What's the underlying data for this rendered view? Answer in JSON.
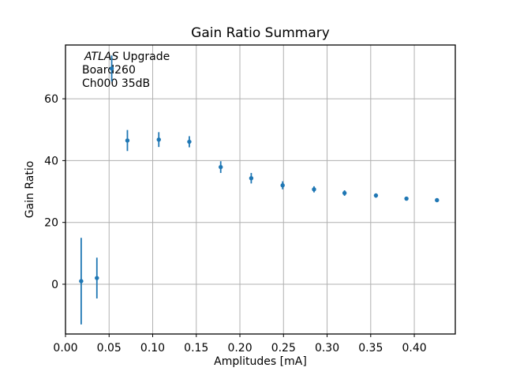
{
  "annotation": {
    "line1_italic": "ATLAS",
    "line1_rest": "Upgrade",
    "line2": "Board260",
    "line3": "Ch000 35dB"
  },
  "colors": {
    "marker": "#1f77b4",
    "grid": "#b0b0b0",
    "spine": "#000000",
    "background": "#ffffff"
  },
  "chart_data": {
    "type": "scatter",
    "title": "Gain Ratio Summary",
    "xlabel": "Amplitudes [mA]",
    "ylabel": "Gain Ratio",
    "xlim": [
      0.0,
      0.447
    ],
    "ylim": [
      -16.1,
      77.4
    ],
    "grid": true,
    "legend_position": "none",
    "xtick_values": [
      0.0,
      0.05,
      0.1,
      0.15,
      0.2,
      0.25,
      0.3,
      0.35,
      0.4
    ],
    "xtick_labels": [
      "0.00",
      "0.05",
      "0.10",
      "0.15",
      "0.20",
      "0.25",
      "0.30",
      "0.35",
      "0.40"
    ],
    "ytick_values": [
      0,
      20,
      40,
      60
    ],
    "ytick_labels": [
      "0",
      "20",
      "40",
      "60"
    ],
    "series": [
      {
        "name": "gain-ratio-points",
        "marker": "dot",
        "color": "#1f77b4",
        "x": [
          0.018,
          0.036,
          0.053,
          0.071,
          0.107,
          0.142,
          0.178,
          0.213,
          0.249,
          0.285,
          0.32,
          0.356,
          0.391,
          0.426
        ],
        "y": [
          1.0,
          2.0,
          69.8,
          46.5,
          46.8,
          46.1,
          37.9,
          34.3,
          32.0,
          30.7,
          29.5,
          28.7,
          27.7,
          27.2
        ],
        "yerr": [
          14.0,
          6.6,
          4.2,
          3.4,
          2.4,
          1.8,
          1.9,
          1.7,
          1.3,
          1.0,
          0.9,
          0.7,
          0.6,
          0.5
        ]
      }
    ]
  }
}
